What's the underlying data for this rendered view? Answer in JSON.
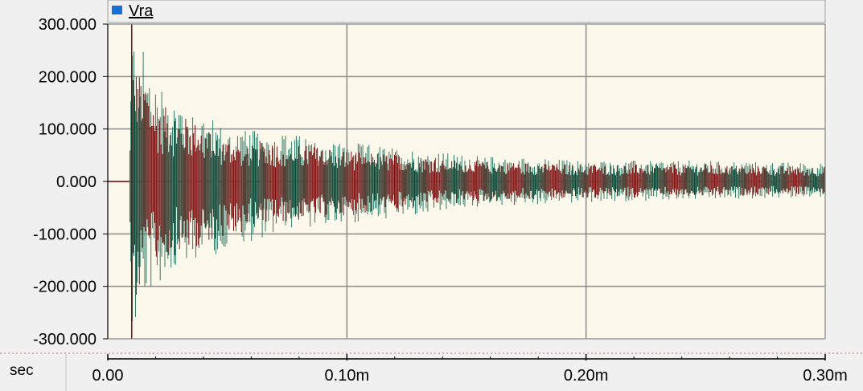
{
  "legend": {
    "label": "Vra",
    "swatch_color": "#1a6fd6"
  },
  "xaxis": {
    "unit": "sec"
  },
  "colors": {
    "plot_background": "#fdf8ec",
    "grid": "#8c8c8c",
    "series_dark": "#7a1010",
    "series_light": "#2f7a66",
    "frame": "#a0a0a0"
  },
  "chart_data": {
    "type": "line",
    "title": "",
    "xlabel": "sec",
    "ylabel": "",
    "xlim": [
      0,
      0.0003
    ],
    "ylim": [
      -300,
      300
    ],
    "grid": true,
    "legend_position": "top-left",
    "x_ticks": [
      {
        "value": 0,
        "label": "0.00"
      },
      {
        "value": 0.0001,
        "label": "0.10m"
      },
      {
        "value": 0.0002,
        "label": "0.20m"
      },
      {
        "value": 0.0003,
        "label": "0.30m"
      }
    ],
    "y_ticks": [
      {
        "value": 300,
        "label": "300.000"
      },
      {
        "value": 200,
        "label": "200.000"
      },
      {
        "value": 100,
        "label": "100.000"
      },
      {
        "value": 0,
        "label": "0.000"
      },
      {
        "value": -100,
        "label": "-100.000"
      },
      {
        "value": -200,
        "label": "-200.000"
      },
      {
        "value": -300,
        "label": "-300.000"
      }
    ],
    "series": [
      {
        "name": "Vra",
        "description": "damped high-frequency oscillation",
        "x": [
          0,
          9e-06,
          1e-05,
          1.2e-05,
          1.5e-05,
          2e-05,
          3e-05,
          5e-05,
          7e-05,
          0.0001,
          0.00013,
          0.00015,
          0.0002,
          0.00025,
          0.0003
        ],
        "y_envelope_max": [
          0,
          0,
          300,
          270,
          250,
          190,
          160,
          100,
          95,
          75,
          60,
          50,
          40,
          40,
          35
        ],
        "y_envelope_min": [
          0,
          0,
          -300,
          -300,
          -220,
          -200,
          -170,
          -130,
          -100,
          -80,
          -65,
          -50,
          -40,
          -35,
          -30
        ]
      }
    ]
  }
}
